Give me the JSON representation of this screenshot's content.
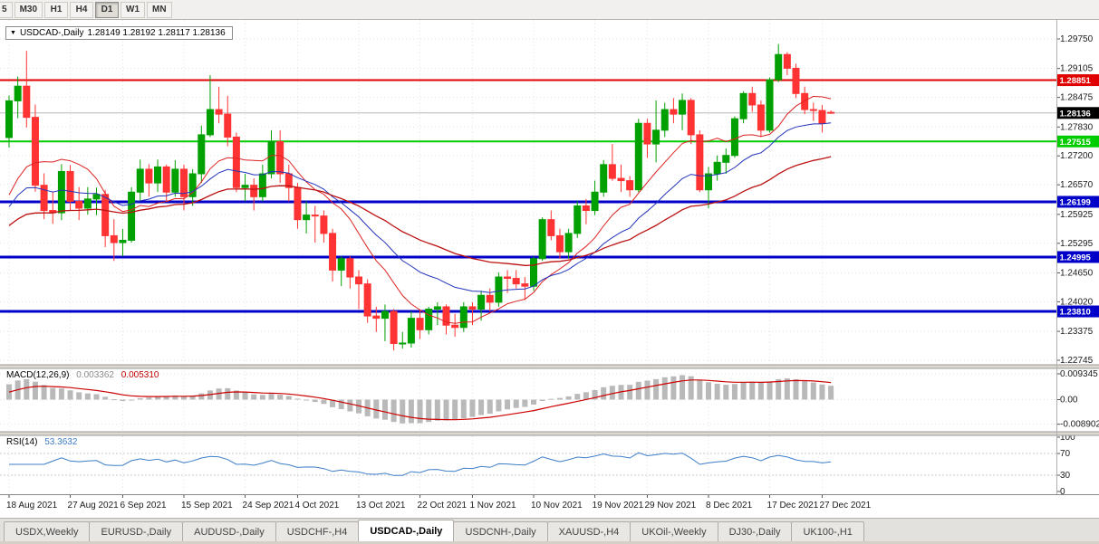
{
  "toolbar": {
    "timeframes": [
      {
        "label": "5",
        "active": false
      },
      {
        "label": "M30",
        "active": false
      },
      {
        "label": "H1",
        "active": false
      },
      {
        "label": "H4",
        "active": false
      },
      {
        "label": "D1",
        "active": true
      },
      {
        "label": "W1",
        "active": false
      },
      {
        "label": "MN",
        "active": false
      }
    ]
  },
  "title": {
    "symbol": "USDCAD-,Daily",
    "ohlc": "1.28149 1.28192 1.28117 1.28136"
  },
  "price_axis": [
    "1.29750",
    "1.29105",
    "1.28475",
    "1.27830",
    "1.27200",
    "1.26570",
    "1.25925",
    "1.25295",
    "1.24650",
    "1.24020",
    "1.23375",
    "1.22745"
  ],
  "levels": [
    {
      "value": "1.28851",
      "price": 1.28851,
      "color": "#e00000",
      "width": 2
    },
    {
      "value": "1.27515",
      "price": 1.27515,
      "color": "#00cc00",
      "width": 2
    },
    {
      "value": "1.26199",
      "price": 1.26199,
      "color": "#0000c8",
      "width": 3
    },
    {
      "value": "1.24995",
      "price": 1.24995,
      "color": "#0000c8",
      "width": 3
    },
    {
      "value": "1.23810",
      "price": 1.2381,
      "color": "#0000c8",
      "width": 3
    }
  ],
  "current_price": {
    "value": "1.28136",
    "price": 1.28136,
    "bg": "#000000"
  },
  "macd": {
    "label": "MACD(12,26,9)",
    "main_value": "0.003362",
    "signal_value": "0.005310",
    "axis": [
      "0.009345",
      "0.00",
      "-0.008902"
    ]
  },
  "rsi": {
    "label": "RSI(14)",
    "value": "53.3632",
    "axis": [
      "100",
      "70",
      "30",
      "0"
    ],
    "levels": [
      70,
      30
    ]
  },
  "date_axis": [
    {
      "label": "18 Aug 2021",
      "index": 0
    },
    {
      "label": "27 Aug 2021",
      "index": 7
    },
    {
      "label": "6 Sep 2021",
      "index": 13
    },
    {
      "label": "15 Sep 2021",
      "index": 20
    },
    {
      "label": "24 Sep 2021",
      "index": 27
    },
    {
      "label": "4 Oct 2021",
      "index": 33
    },
    {
      "label": "13 Oct 2021",
      "index": 40
    },
    {
      "label": "22 Oct 2021",
      "index": 47
    },
    {
      "label": "1 Nov 2021",
      "index": 53
    },
    {
      "label": "10 Nov 2021",
      "index": 60
    },
    {
      "label": "19 Nov 2021",
      "index": 67
    },
    {
      "label": "29 Nov 2021",
      "index": 73
    },
    {
      "label": "8 Dec 2021",
      "index": 80
    },
    {
      "label": "17 Dec 2021",
      "index": 87
    },
    {
      "label": "27 Dec 2021",
      "index": 93
    }
  ],
  "tabs": [
    {
      "label": "USDX,Weekly",
      "active": false
    },
    {
      "label": "EURUSD-,Daily",
      "active": false
    },
    {
      "label": "AUDUSD-,Daily",
      "active": false
    },
    {
      "label": "USDCHF-,H4",
      "active": false
    },
    {
      "label": "USDCAD-,Daily",
      "active": true
    },
    {
      "label": "USDCNH-,Daily",
      "active": false
    },
    {
      "label": "XAUUSD-,H4",
      "active": false
    },
    {
      "label": "UKOil-,Weekly",
      "active": false
    },
    {
      "label": "DJ30-,Daily",
      "active": false
    },
    {
      "label": "UK100-,H1",
      "active": false
    }
  ],
  "chart_data": {
    "type": "candlestick",
    "symbol": "USDCAD",
    "timeframe": "Daily",
    "title": "USDCAD-,Daily",
    "ylim": [
      1.22745,
      1.2975
    ],
    "colors": {
      "up": "#00a000",
      "down": "#ff3333",
      "bid_line": "#b8b8b8"
    },
    "moving_averages": [
      {
        "type": "sma",
        "period": 10,
        "color": "#dd2222",
        "width": 1
      },
      {
        "type": "ema",
        "period": 20,
        "color": "#2233bb",
        "width": 1
      },
      {
        "type": "ema",
        "period": 42,
        "color": "#bb1111",
        "width": 1.3
      }
    ],
    "indicators": [
      {
        "name": "MACD(12,26,9)",
        "histogram_color": "#b9b9b9",
        "signal_color": "#cc0000"
      },
      {
        "name": "RSI(14)",
        "line_color": "#3d7dc8"
      }
    ],
    "ohlc": [
      [
        1.276,
        1.2852,
        1.2738,
        1.284
      ],
      [
        1.284,
        1.2893,
        1.2802,
        1.2872
      ],
      [
        1.2872,
        1.2949,
        1.2782,
        1.2804
      ],
      [
        1.2804,
        1.2832,
        1.2642,
        1.2656
      ],
      [
        1.2656,
        1.2682,
        1.2582,
        1.2601
      ],
      [
        1.2601,
        1.2642,
        1.2572,
        1.2596
      ],
      [
        1.2596,
        1.2702,
        1.258,
        1.2686
      ],
      [
        1.2686,
        1.27,
        1.2601,
        1.2621
      ],
      [
        1.2621,
        1.2652,
        1.258,
        1.2606
      ],
      [
        1.2606,
        1.2652,
        1.2592,
        1.2626
      ],
      [
        1.2626,
        1.2651,
        1.2591,
        1.2636
      ],
      [
        1.2636,
        1.2646,
        1.2521,
        1.2546
      ],
      [
        1.2546,
        1.2582,
        1.2491,
        1.2531
      ],
      [
        1.2531,
        1.2561,
        1.2501,
        1.2536
      ],
      [
        1.2536,
        1.2652,
        1.2531,
        1.2641
      ],
      [
        1.2641,
        1.2712,
        1.2621,
        1.2691
      ],
      [
        1.2691,
        1.2702,
        1.2631,
        1.2661
      ],
      [
        1.2661,
        1.2712,
        1.2641,
        1.2696
      ],
      [
        1.2696,
        1.2701,
        1.2621,
        1.2641
      ],
      [
        1.2641,
        1.2711,
        1.2631,
        1.2691
      ],
      [
        1.2691,
        1.2701,
        1.2601,
        1.2631
      ],
      [
        1.2631,
        1.2691,
        1.2611,
        1.2681
      ],
      [
        1.2681,
        1.2786,
        1.2661,
        1.2766
      ],
      [
        1.2766,
        1.2896,
        1.2761,
        1.2821
      ],
      [
        1.2821,
        1.2871,
        1.2791,
        1.2811
      ],
      [
        1.2811,
        1.2851,
        1.2741,
        1.2761
      ],
      [
        1.2761,
        1.2771,
        1.2641,
        1.2651
      ],
      [
        1.2651,
        1.2681,
        1.2621,
        1.2656
      ],
      [
        1.2656,
        1.2671,
        1.2601,
        1.2631
      ],
      [
        1.2631,
        1.2701,
        1.2621,
        1.2681
      ],
      [
        1.2681,
        1.2776,
        1.2671,
        1.2751
      ],
      [
        1.2751,
        1.2776,
        1.2661,
        1.2681
      ],
      [
        1.2681,
        1.2701,
        1.2621,
        1.2651
      ],
      [
        1.2651,
        1.2661,
        1.2561,
        1.2581
      ],
      [
        1.2581,
        1.2621,
        1.2551,
        1.2591
      ],
      [
        1.2591,
        1.2611,
        1.2531,
        1.2589
      ],
      [
        1.2589,
        1.2601,
        1.2531,
        1.2551
      ],
      [
        1.2551,
        1.2561,
        1.2446,
        1.2471
      ],
      [
        1.2471,
        1.2501,
        1.2436,
        1.2496
      ],
      [
        1.2496,
        1.2501,
        1.2431,
        1.2456
      ],
      [
        1.2456,
        1.2471,
        1.2386,
        1.2441
      ],
      [
        1.2441,
        1.2451,
        1.2356,
        1.2371
      ],
      [
        1.2371,
        1.2391,
        1.2336,
        1.2366
      ],
      [
        1.2366,
        1.2396,
        1.2316,
        1.2381
      ],
      [
        1.2381,
        1.2386,
        1.2296,
        1.2311
      ],
      [
        1.2311,
        1.2336,
        1.23,
        1.2312
      ],
      [
        1.2312,
        1.2381,
        1.2302,
        1.2366
      ],
      [
        1.2366,
        1.2386,
        1.2321,
        1.2341
      ],
      [
        1.2341,
        1.2391,
        1.2331,
        1.2386
      ],
      [
        1.2386,
        1.2401,
        1.2351,
        1.2391
      ],
      [
        1.2391,
        1.2396,
        1.2331,
        1.2351
      ],
      [
        1.2351,
        1.2376,
        1.2326,
        1.2346
      ],
      [
        1.2346,
        1.2401,
        1.2336,
        1.2391
      ],
      [
        1.2391,
        1.2401,
        1.2351,
        1.2386
      ],
      [
        1.2386,
        1.2426,
        1.2361,
        1.2416
      ],
      [
        1.2416,
        1.2431,
        1.2381,
        1.2401
      ],
      [
        1.2401,
        1.2466,
        1.2391,
        1.2456
      ],
      [
        1.2456,
        1.2471,
        1.2421,
        1.2453
      ],
      [
        1.2453,
        1.2471,
        1.2431,
        1.2441
      ],
      [
        1.2441,
        1.2456,
        1.2406,
        1.2436
      ],
      [
        1.2436,
        1.2501,
        1.2426,
        1.2496
      ],
      [
        1.2496,
        1.2586,
        1.2491,
        1.2581
      ],
      [
        1.2581,
        1.2601,
        1.2536,
        1.2546
      ],
      [
        1.2546,
        1.2561,
        1.2496,
        1.2511
      ],
      [
        1.2511,
        1.2561,
        1.2496,
        1.2551
      ],
      [
        1.2551,
        1.2621,
        1.2541,
        1.2611
      ],
      [
        1.2611,
        1.2626,
        1.2571,
        1.2601
      ],
      [
        1.2601,
        1.2666,
        1.2591,
        1.2641
      ],
      [
        1.2641,
        1.2711,
        1.2631,
        1.2701
      ],
      [
        1.2701,
        1.2746,
        1.2666,
        1.2671
      ],
      [
        1.2671,
        1.2701,
        1.2641,
        1.2666
      ],
      [
        1.2666,
        1.2676,
        1.2631,
        1.2646
      ],
      [
        1.2646,
        1.2801,
        1.2641,
        1.2791
      ],
      [
        1.2791,
        1.2801,
        1.2716,
        1.2746
      ],
      [
        1.2746,
        1.2841,
        1.2706,
        1.2776
      ],
      [
        1.2776,
        1.2836,
        1.2761,
        1.2821
      ],
      [
        1.2821,
        1.2846,
        1.2791,
        1.2811
      ],
      [
        1.2811,
        1.2856,
        1.2776,
        1.2841
      ],
      [
        1.2841,
        1.2846,
        1.2746,
        1.2766
      ],
      [
        1.2766,
        1.2776,
        1.2641,
        1.2646
      ],
      [
        1.2646,
        1.2696,
        1.2606,
        1.2681
      ],
      [
        1.2681,
        1.2721,
        1.2666,
        1.2706
      ],
      [
        1.2706,
        1.2736,
        1.2681,
        1.2721
      ],
      [
        1.2721,
        1.2806,
        1.2716,
        1.2801
      ],
      [
        1.2801,
        1.2861,
        1.2791,
        1.2856
      ],
      [
        1.2856,
        1.2871,
        1.2816,
        1.2831
      ],
      [
        1.2831,
        1.2841,
        1.2761,
        1.2776
      ],
      [
        1.2776,
        1.2891,
        1.2771,
        1.2886
      ],
      [
        1.2886,
        1.2964,
        1.2881,
        1.2941
      ],
      [
        1.2941,
        1.2946,
        1.2896,
        1.2911
      ],
      [
        1.2911,
        1.2921,
        1.2846,
        1.2856
      ],
      [
        1.2856,
        1.2871,
        1.2811,
        1.2821
      ],
      [
        1.2821,
        1.2836,
        1.2796,
        1.2819
      ],
      [
        1.2819,
        1.2831,
        1.2771,
        1.2791
      ],
      [
        1.28149,
        1.28192,
        1.28117,
        1.28136
      ]
    ]
  }
}
